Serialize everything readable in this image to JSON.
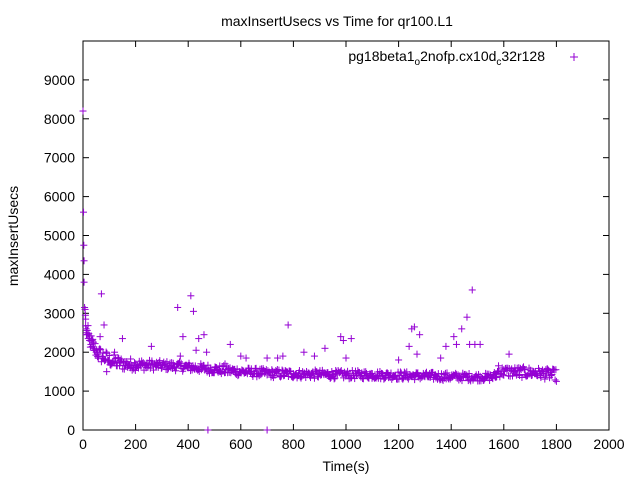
{
  "chart_data": {
    "type": "scatter",
    "title": "maxInsertUsecs vs Time for qr100.L1",
    "xlabel": "Time(s)",
    "ylabel": "maxInsertUsecs",
    "xlim": [
      0,
      2000
    ],
    "ylim": [
      0,
      10000
    ],
    "xticks": [
      0,
      200,
      400,
      600,
      800,
      1000,
      1200,
      1400,
      1600,
      1800,
      2000
    ],
    "yticks": [
      0,
      1000,
      2000,
      3000,
      4000,
      5000,
      6000,
      7000,
      8000,
      9000
    ],
    "grid": false,
    "legend_position": "top-right",
    "marker": "+",
    "series": [
      {
        "name": "pg18beta1_o2nofp.cx10d_c32r128",
        "name_parts": {
          "base": "pg18beta1",
          "sub1": "o",
          "mid": "2nofp.cx10d",
          "sub2": "c",
          "tail": "32r128"
        },
        "color": "#9400d3",
        "points": [
          [
            0,
            8200
          ],
          [
            2,
            5600
          ],
          [
            3,
            4750
          ],
          [
            4,
            4350
          ],
          [
            4,
            3800
          ],
          [
            6,
            3150
          ],
          [
            8,
            3100
          ],
          [
            9,
            2950
          ],
          [
            10,
            2850
          ],
          [
            12,
            2600
          ],
          [
            14,
            2500
          ],
          [
            16,
            2450
          ],
          [
            20,
            2350
          ],
          [
            25,
            2300
          ],
          [
            30,
            2200
          ],
          [
            35,
            2150
          ],
          [
            40,
            2100
          ],
          [
            45,
            2050
          ],
          [
            50,
            2000
          ],
          [
            55,
            1950
          ],
          [
            60,
            1900
          ],
          [
            65,
            2400
          ],
          [
            70,
            3500
          ],
          [
            75,
            1850
          ],
          [
            80,
            2700
          ],
          [
            85,
            1800
          ],
          [
            90,
            1500
          ],
          [
            95,
            1750
          ],
          [
            100,
            1800
          ],
          [
            110,
            1700
          ],
          [
            120,
            2000
          ],
          [
            130,
            1650
          ],
          [
            140,
            1750
          ],
          [
            150,
            2350
          ],
          [
            160,
            1650
          ],
          [
            170,
            1700
          ],
          [
            180,
            1600
          ],
          [
            190,
            1650
          ],
          [
            200,
            1700
          ],
          [
            220,
            1650
          ],
          [
            240,
            1600
          ],
          [
            260,
            2150
          ],
          [
            280,
            1650
          ],
          [
            300,
            1600
          ],
          [
            320,
            1650
          ],
          [
            340,
            1600
          ],
          [
            360,
            3150
          ],
          [
            370,
            1900
          ],
          [
            380,
            2400
          ],
          [
            400,
            1600
          ],
          [
            410,
            3450
          ],
          [
            420,
            3050
          ],
          [
            430,
            2050
          ],
          [
            440,
            2350
          ],
          [
            450,
            1550
          ],
          [
            460,
            2450
          ],
          [
            470,
            2000
          ],
          [
            475,
            0
          ],
          [
            480,
            1500
          ],
          [
            500,
            1550
          ],
          [
            520,
            1500
          ],
          [
            540,
            1700
          ],
          [
            560,
            2200
          ],
          [
            570,
            1550
          ],
          [
            580,
            1500
          ],
          [
            600,
            1900
          ],
          [
            620,
            1850
          ],
          [
            640,
            1500
          ],
          [
            660,
            1450
          ],
          [
            680,
            1450
          ],
          [
            700,
            0
          ],
          [
            700,
            1850
          ],
          [
            720,
            1400
          ],
          [
            740,
            1850
          ],
          [
            760,
            1900
          ],
          [
            780,
            2700
          ],
          [
            800,
            1450
          ],
          [
            820,
            1400
          ],
          [
            840,
            2000
          ],
          [
            860,
            1450
          ],
          [
            880,
            1900
          ],
          [
            900,
            1450
          ],
          [
            920,
            2100
          ],
          [
            940,
            1400
          ],
          [
            960,
            1450
          ],
          [
            980,
            2400
          ],
          [
            990,
            2300
          ],
          [
            1000,
            1850
          ],
          [
            1020,
            2350
          ],
          [
            1040,
            1400
          ],
          [
            1060,
            1450
          ],
          [
            1080,
            1400
          ],
          [
            1100,
            1450
          ],
          [
            1120,
            1400
          ],
          [
            1140,
            1400
          ],
          [
            1160,
            1450
          ],
          [
            1180,
            1400
          ],
          [
            1200,
            1800
          ],
          [
            1220,
            1400
          ],
          [
            1240,
            2150
          ],
          [
            1250,
            2600
          ],
          [
            1260,
            2650
          ],
          [
            1270,
            1950
          ],
          [
            1280,
            2450
          ],
          [
            1300,
            1400
          ],
          [
            1320,
            1350
          ],
          [
            1340,
            1400
          ],
          [
            1360,
            1850
          ],
          [
            1380,
            2150
          ],
          [
            1400,
            1350
          ],
          [
            1410,
            2400
          ],
          [
            1420,
            2200
          ],
          [
            1440,
            2600
          ],
          [
            1460,
            2900
          ],
          [
            1470,
            2200
          ],
          [
            1480,
            3600
          ],
          [
            1490,
            2200
          ],
          [
            1500,
            1350
          ],
          [
            1510,
            2200
          ],
          [
            1530,
            1350
          ],
          [
            1550,
            1400
          ],
          [
            1570,
            1350
          ],
          [
            1580,
            1650
          ],
          [
            1600,
            1550
          ],
          [
            1620,
            1950
          ],
          [
            1640,
            1500
          ],
          [
            1660,
            1400
          ],
          [
            1680,
            1550
          ],
          [
            1700,
            1450
          ],
          [
            1720,
            1500
          ],
          [
            1740,
            1400
          ],
          [
            1760,
            1550
          ],
          [
            1780,
            1400
          ],
          [
            1800,
            1250
          ]
        ],
        "trend": [
          [
            10,
            2600
          ],
          [
            30,
            2250
          ],
          [
            60,
            1950
          ],
          [
            100,
            1800
          ],
          [
            150,
            1700
          ],
          [
            200,
            1680
          ],
          [
            300,
            1660
          ],
          [
            400,
            1620
          ],
          [
            500,
            1560
          ],
          [
            600,
            1500
          ],
          [
            700,
            1460
          ],
          [
            800,
            1440
          ],
          [
            900,
            1430
          ],
          [
            1000,
            1420
          ],
          [
            1100,
            1420
          ],
          [
            1200,
            1400
          ],
          [
            1300,
            1390
          ],
          [
            1400,
            1370
          ],
          [
            1500,
            1360
          ],
          [
            1560,
            1360
          ],
          [
            1580,
            1500
          ],
          [
            1700,
            1480
          ],
          [
            1800,
            1420
          ]
        ],
        "trend_spread": [
          [
            10,
            250
          ],
          [
            100,
            180
          ],
          [
            300,
            120
          ],
          [
            1000,
            110
          ],
          [
            1560,
            100
          ],
          [
            1580,
            140
          ],
          [
            1800,
            140
          ]
        ]
      }
    ]
  }
}
